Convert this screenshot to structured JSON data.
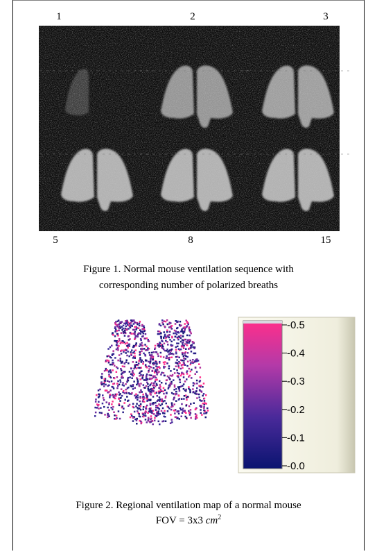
{
  "figure1": {
    "top_labels": [
      "1",
      "2",
      "3"
    ],
    "bottom_labels": [
      "5",
      "8",
      "15"
    ],
    "caption": [
      "Figure 1. Normal mouse ventilation sequence with",
      "corresponding number of polarized breaths"
    ]
  },
  "figure2": {
    "colorbar_ticks": [
      "-0.5",
      "-0.4",
      "-0.3",
      "-0.2",
      "-0.1",
      "-0.0"
    ],
    "caption_line1": "Figure 2. Regional ventilation map of a normal mouse",
    "caption_line2": {
      "prefix": "FOV = 3x3 ",
      "unit": "cm",
      "exponent": "2"
    }
  }
}
